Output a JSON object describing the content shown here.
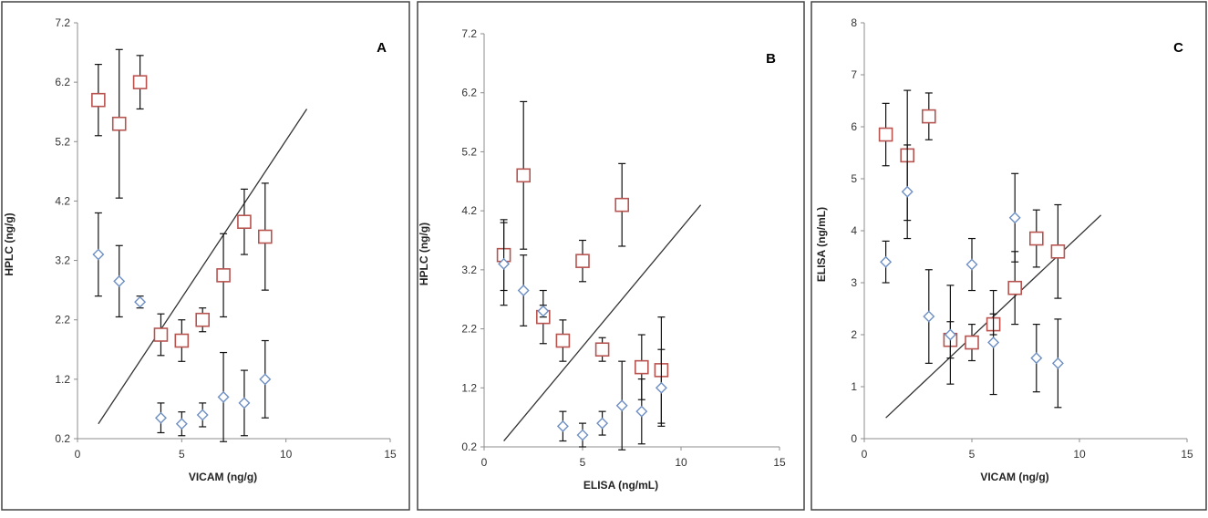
{
  "colors": {
    "series_red": "#b85450",
    "series_blue": "#6e8fc4",
    "error_bar": "#111111",
    "trend_line": "#333333"
  },
  "chart_data": [
    {
      "type": "scatter",
      "panel_label": "A",
      "xlabel": "VICAM (ng/g)",
      "ylabel": "HPLC (ng/g)",
      "xlim": [
        0,
        15
      ],
      "ylim": [
        0.2,
        7.2
      ],
      "xticks": [
        "0",
        "5",
        "10",
        "15"
      ],
      "yticks": [
        "0.2",
        "1.2",
        "2.2",
        "3.2",
        "4.2",
        "5.2",
        "6.2",
        "7.2"
      ],
      "xtick_values": [
        0,
        5,
        10,
        15
      ],
      "ytick_values": [
        0.2,
        1.2,
        2.2,
        3.2,
        4.2,
        5.2,
        6.2,
        7.2
      ],
      "legend": "none",
      "grid": false,
      "trendline": [
        [
          1,
          0.45
        ],
        [
          11,
          5.75
        ]
      ],
      "series": [
        {
          "marker": "square",
          "color": "#b85450",
          "points": [
            {
              "x": 1,
              "y": 5.9,
              "err": 0.6
            },
            {
              "x": 2,
              "y": 5.5,
              "err": 1.25
            },
            {
              "x": 3,
              "y": 6.2,
              "err": 0.45
            },
            {
              "x": 4,
              "y": 1.95,
              "err": 0.35
            },
            {
              "x": 5,
              "y": 1.85,
              "err": 0.35
            },
            {
              "x": 6,
              "y": 2.2,
              "err": 0.2
            },
            {
              "x": 7,
              "y": 2.95,
              "err": 0.7
            },
            {
              "x": 8,
              "y": 3.85,
              "err": 0.55
            },
            {
              "x": 9,
              "y": 3.6,
              "err": 0.9
            }
          ]
        },
        {
          "marker": "diamond",
          "color": "#6e8fc4",
          "points": [
            {
              "x": 1,
              "y": 3.3,
              "err": 0.7
            },
            {
              "x": 2,
              "y": 2.85,
              "err": 0.6
            },
            {
              "x": 3,
              "y": 2.5,
              "err": 0.1
            },
            {
              "x": 4,
              "y": 0.55,
              "err": 0.25
            },
            {
              "x": 5,
              "y": 0.45,
              "err": 0.2
            },
            {
              "x": 6,
              "y": 0.6,
              "err": 0.2
            },
            {
              "x": 7,
              "y": 0.9,
              "err": 0.75
            },
            {
              "x": 8,
              "y": 0.8,
              "err": 0.55
            },
            {
              "x": 9,
              "y": 1.2,
              "err": 0.65
            }
          ]
        }
      ]
    },
    {
      "type": "scatter",
      "panel_label": "B",
      "xlabel": "ELISA (ng/mL)",
      "ylabel": "HPLC (ng/g)",
      "xlim": [
        0,
        15
      ],
      "ylim": [
        0.2,
        7.2
      ],
      "xticks": [
        "0",
        "5",
        "10",
        "15"
      ],
      "yticks": [
        "0.2",
        "1.2",
        "2.2",
        "3.2",
        "4.2",
        "5.2",
        "6.2",
        "7.2"
      ],
      "xtick_values": [
        0,
        5,
        10,
        15
      ],
      "ytick_values": [
        0.2,
        1.2,
        2.2,
        3.2,
        4.2,
        5.2,
        6.2,
        7.2
      ],
      "legend": "none",
      "grid": false,
      "trendline": [
        [
          1,
          0.3
        ],
        [
          11,
          4.3
        ]
      ],
      "series": [
        {
          "marker": "square",
          "color": "#b85450",
          "points": [
            {
              "x": 1,
              "y": 3.45,
              "err": 0.6
            },
            {
              "x": 2,
              "y": 4.8,
              "err": 1.25
            },
            {
              "x": 3,
              "y": 2.4,
              "err": 0.45
            },
            {
              "x": 4,
              "y": 2.0,
              "err": 0.35
            },
            {
              "x": 5,
              "y": 3.35,
              "err": 0.35
            },
            {
              "x": 6,
              "y": 1.85,
              "err": 0.2
            },
            {
              "x": 7,
              "y": 4.3,
              "err": 0.7
            },
            {
              "x": 8,
              "y": 1.55,
              "err": 0.55
            },
            {
              "x": 9,
              "y": 1.5,
              "err": 0.9
            }
          ]
        },
        {
          "marker": "diamond",
          "color": "#6e8fc4",
          "points": [
            {
              "x": 1,
              "y": 3.3,
              "err": 0.7
            },
            {
              "x": 2,
              "y": 2.85,
              "err": 0.6
            },
            {
              "x": 3,
              "y": 2.5,
              "err": 0.1
            },
            {
              "x": 4,
              "y": 0.55,
              "err": 0.25
            },
            {
              "x": 5,
              "y": 0.4,
              "err": 0.2
            },
            {
              "x": 6,
              "y": 0.6,
              "err": 0.2
            },
            {
              "x": 7,
              "y": 0.9,
              "err": 0.75
            },
            {
              "x": 8,
              "y": 0.8,
              "err": 0.55
            },
            {
              "x": 9,
              "y": 1.2,
              "err": 0.65
            }
          ]
        }
      ]
    },
    {
      "type": "scatter",
      "panel_label": "C",
      "xlabel": "VICAM (ng/g)",
      "ylabel": "ELISA (ng/mL)",
      "xlim": [
        0,
        15
      ],
      "ylim": [
        0,
        8
      ],
      "xticks": [
        "0",
        "5",
        "10",
        "15"
      ],
      "yticks": [
        "0",
        "1",
        "2",
        "3",
        "4",
        "5",
        "6",
        "7",
        "8"
      ],
      "xtick_values": [
        0,
        5,
        10,
        15
      ],
      "ytick_values": [
        0,
        1,
        2,
        3,
        4,
        5,
        6,
        7,
        8
      ],
      "legend": "none",
      "grid": false,
      "trendline": [
        [
          1,
          0.4
        ],
        [
          11,
          4.3
        ]
      ],
      "series": [
        {
          "marker": "square",
          "color": "#b85450",
          "points": [
            {
              "x": 1,
              "y": 5.85,
              "err": 0.6
            },
            {
              "x": 2,
              "y": 5.45,
              "err": 1.25
            },
            {
              "x": 3,
              "y": 6.2,
              "err": 0.45
            },
            {
              "x": 4,
              "y": 1.9,
              "err": 0.35
            },
            {
              "x": 5,
              "y": 1.85,
              "err": 0.35
            },
            {
              "x": 6,
              "y": 2.2,
              "err": 0.2
            },
            {
              "x": 7,
              "y": 2.9,
              "err": 0.7
            },
            {
              "x": 8,
              "y": 3.85,
              "err": 0.55
            },
            {
              "x": 9,
              "y": 3.6,
              "err": 0.9
            }
          ]
        },
        {
          "marker": "diamond",
          "color": "#6e8fc4",
          "points": [
            {
              "x": 1,
              "y": 3.4,
              "err": 0.4
            },
            {
              "x": 2,
              "y": 4.75,
              "err": 0.9
            },
            {
              "x": 3,
              "y": 2.35,
              "err": 0.9
            },
            {
              "x": 4,
              "y": 2.0,
              "err": 0.95
            },
            {
              "x": 5,
              "y": 3.35,
              "err": 0.5
            },
            {
              "x": 6,
              "y": 1.85,
              "err": 1.0
            },
            {
              "x": 7,
              "y": 4.25,
              "err": 0.85
            },
            {
              "x": 8,
              "y": 1.55,
              "err": 0.65
            },
            {
              "x": 9,
              "y": 1.45,
              "err": 0.85
            }
          ]
        }
      ]
    }
  ]
}
